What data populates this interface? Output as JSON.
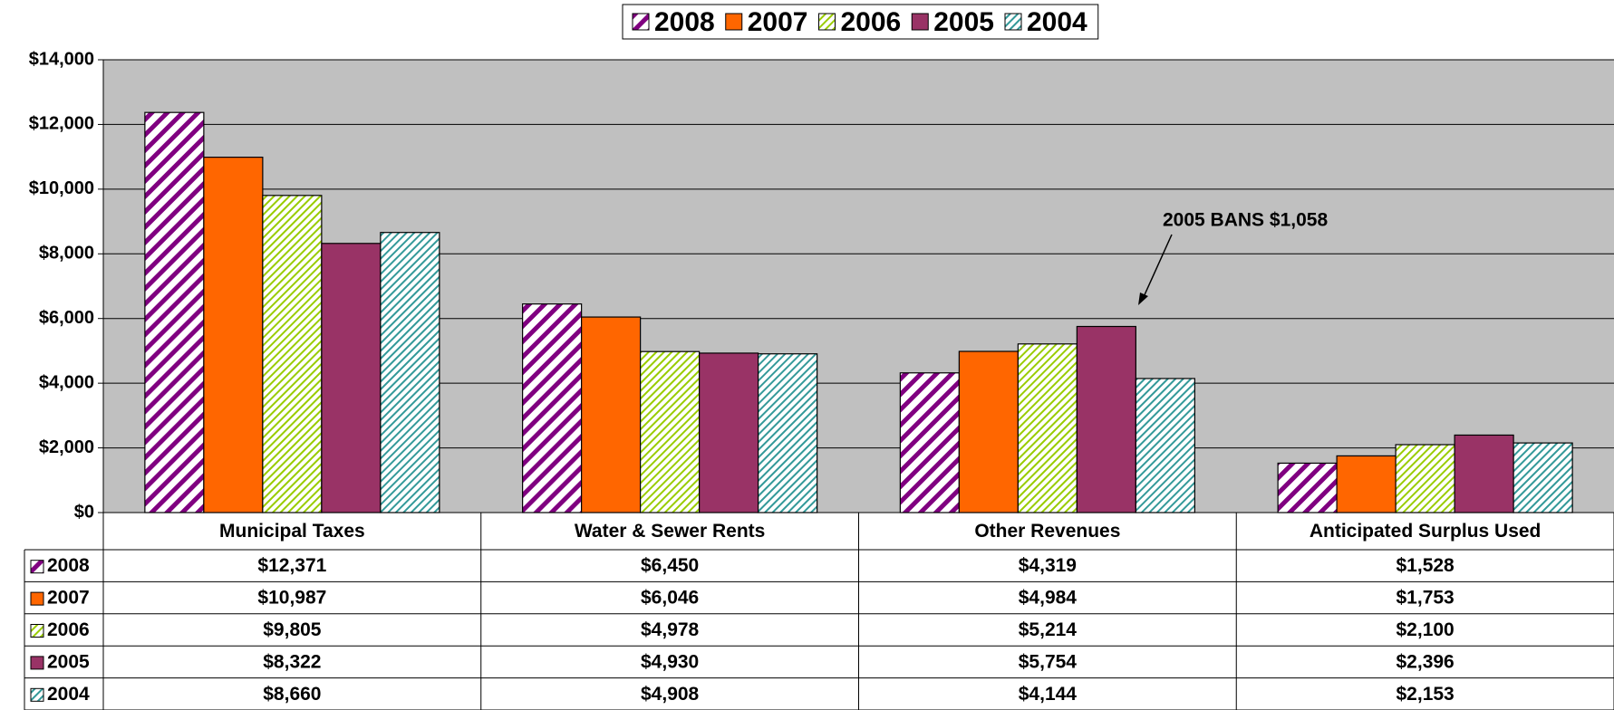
{
  "chart_data": {
    "type": "bar",
    "categories": [
      "Municipal Taxes",
      "Water & Sewer Rents",
      "Other Revenues",
      "Anticipated Surplus Used"
    ],
    "series": [
      {
        "name": "2008",
        "color": "#800080",
        "hatch": true,
        "values": [
          12371,
          6450,
          4319,
          1528
        ],
        "value_labels": [
          "$12,371",
          "$6,450",
          "$4,319",
          "$1,528"
        ]
      },
      {
        "name": "2007",
        "color": "#ff6600",
        "hatch": false,
        "values": [
          10987,
          6046,
          4984,
          1753
        ],
        "value_labels": [
          "$10,987",
          "$6,046",
          "$4,984",
          "$1,753"
        ]
      },
      {
        "name": "2006",
        "color": "#99cc00",
        "hatch": true,
        "values": [
          9805,
          4978,
          5214,
          2100
        ],
        "value_labels": [
          "$9,805",
          "$4,978",
          "$5,214",
          "$2,100"
        ]
      },
      {
        "name": "2005",
        "color": "#993366",
        "hatch": false,
        "values": [
          8322,
          4930,
          5754,
          2396
        ],
        "value_labels": [
          "$8,322",
          "$4,930",
          "$5,754",
          "$2,396"
        ]
      },
      {
        "name": "2004",
        "color": "#339999",
        "hatch": true,
        "values": [
          8660,
          4908,
          4144,
          2153
        ],
        "value_labels": [
          "$8,660",
          "$4,908",
          "$4,144",
          "$2,153"
        ]
      }
    ],
    "ylim": [
      0,
      14000
    ],
    "yticks": [
      {
        "value": 0,
        "label": "$0"
      },
      {
        "value": 2000,
        "label": "$2,000"
      },
      {
        "value": 4000,
        "label": "$4,000"
      },
      {
        "value": 6000,
        "label": "$6,000"
      },
      {
        "value": 8000,
        "label": "$8,000"
      },
      {
        "value": 10000,
        "label": "$10,000"
      },
      {
        "value": 12000,
        "label": "$12,000"
      },
      {
        "value": 14000,
        "label": "$14,000"
      }
    ],
    "grid": true,
    "legend": "top",
    "annotation": "2005 BANS $1,058"
  }
}
